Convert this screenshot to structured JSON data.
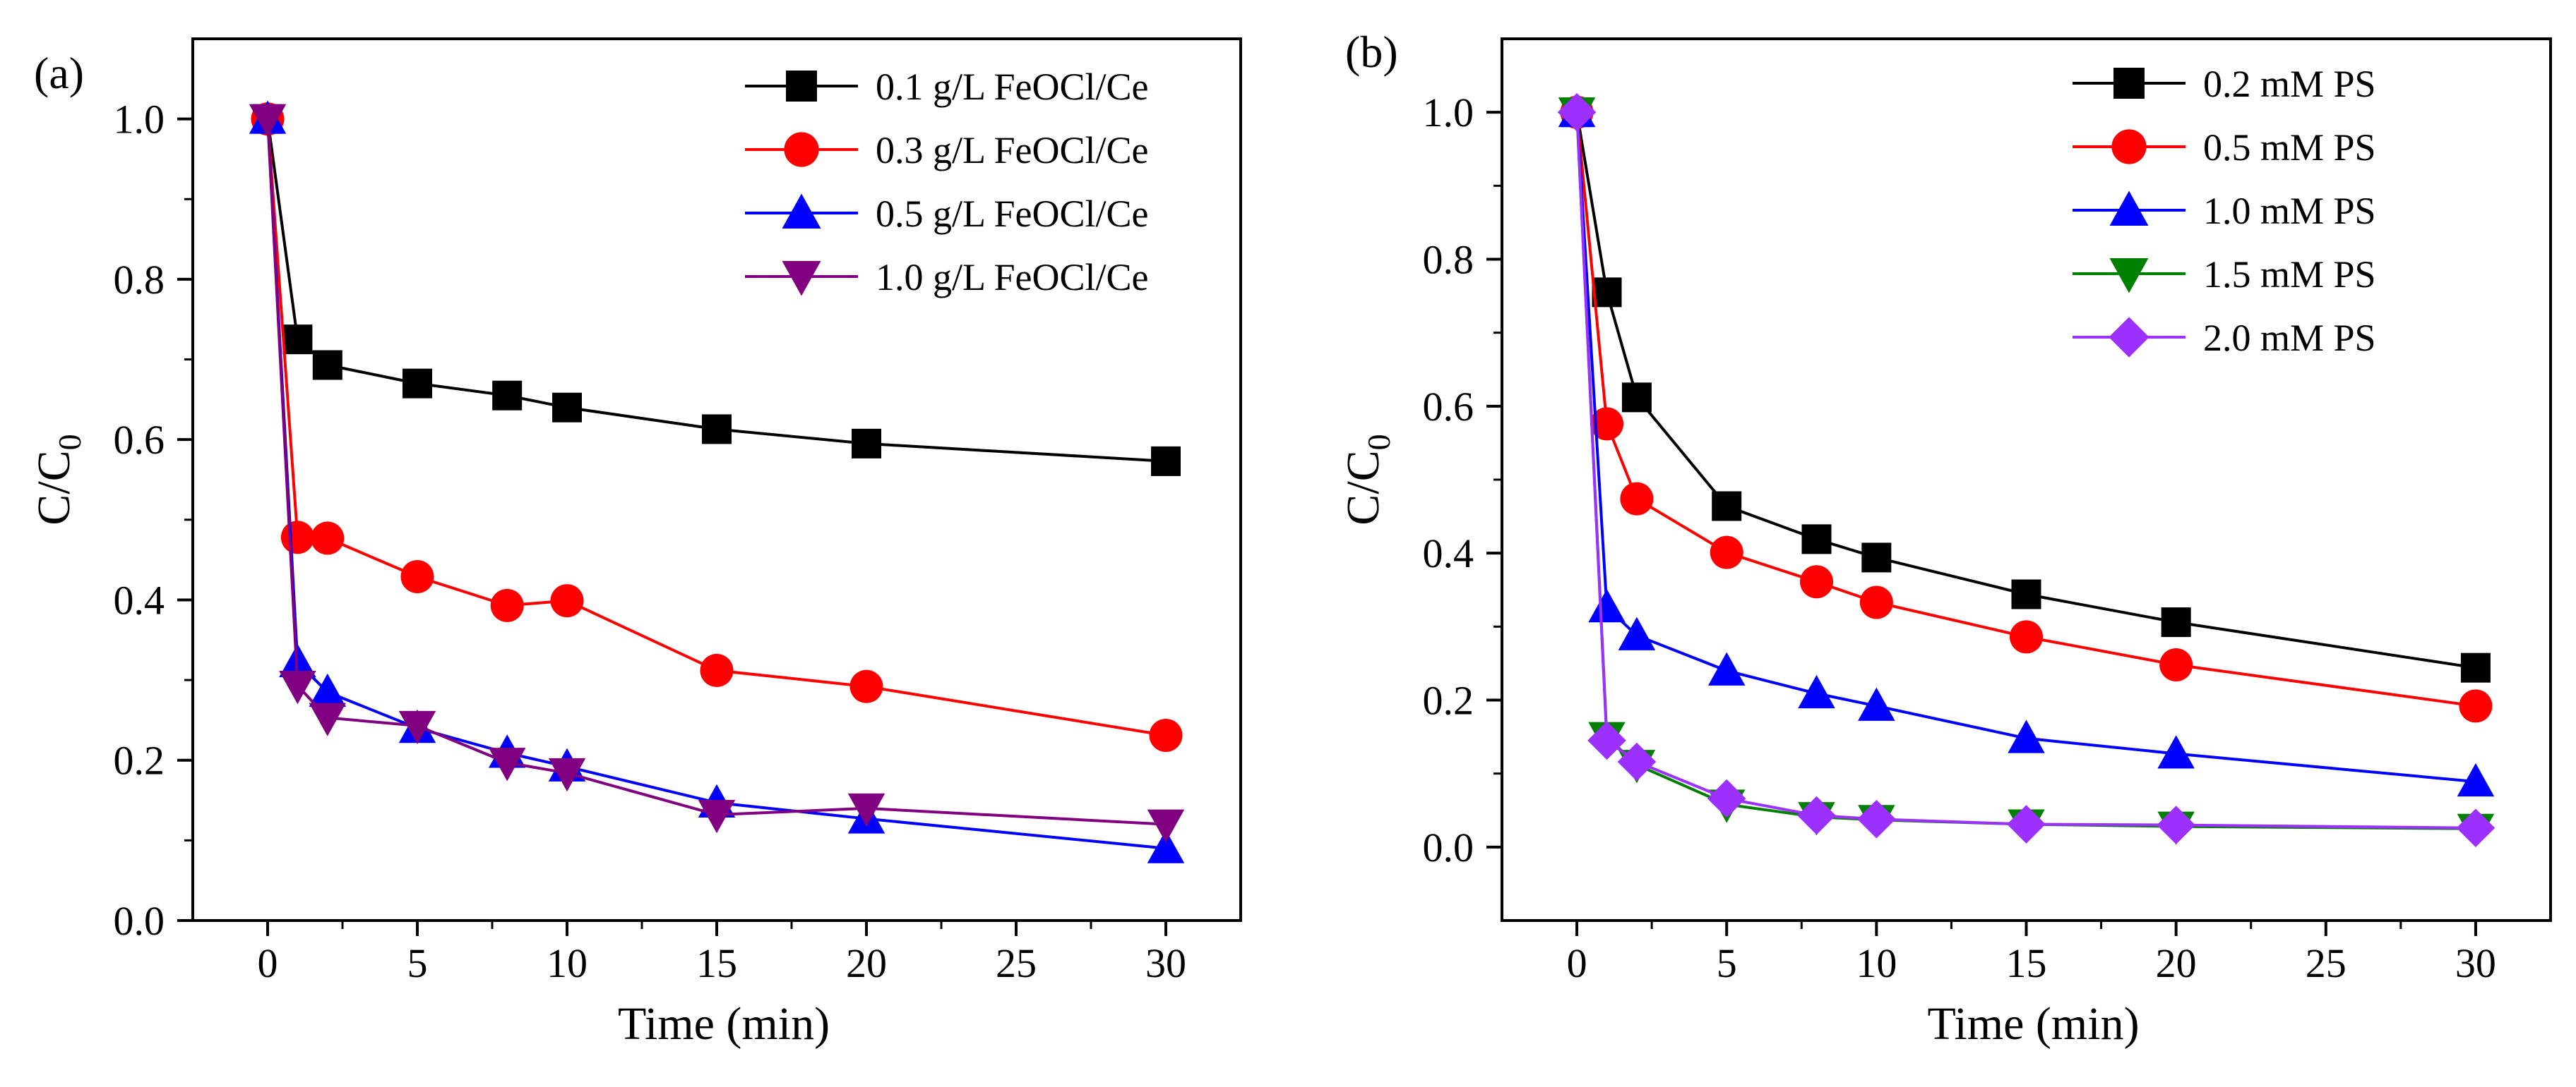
{
  "chart_data": [
    {
      "type": "line",
      "panel_label": "(a)",
      "xlabel": "Time (min)",
      "ylabel": "C/C0",
      "ylabel_main": "C/C",
      "ylabel_sub": "0",
      "xlim": [
        -2.5,
        32.5
      ],
      "ylim": [
        0.0,
        1.1
      ],
      "xticks": [
        0,
        5,
        10,
        15,
        20,
        25,
        30
      ],
      "yticks": [
        0.0,
        0.2,
        0.4,
        0.6,
        0.8,
        1.0
      ],
      "ytick_labels": [
        "0.0",
        "0.2",
        "0.4",
        "0.6",
        "0.8",
        "1.0"
      ],
      "legend_position": "top-right",
      "x": [
        0,
        1,
        2,
        5,
        8,
        10,
        15,
        20,
        30
      ],
      "series": [
        {
          "name": "0.1 g/L FeOCl/Ce",
          "color": "#000000",
          "marker": "square",
          "values": [
            1.0,
            0.725,
            0.693,
            0.67,
            0.655,
            0.64,
            0.613,
            0.595,
            0.573
          ]
        },
        {
          "name": "0.3 g/L FeOCl/Ce",
          "color": "#ff0000",
          "marker": "circle",
          "values": [
            1.0,
            0.478,
            0.477,
            0.429,
            0.393,
            0.399,
            0.312,
            0.292,
            0.231
          ]
        },
        {
          "name": "0.5 g/L FeOCl/Ce",
          "color": "#0000ff",
          "marker": "triangle-up",
          "values": [
            1.0,
            0.322,
            0.285,
            0.24,
            0.209,
            0.192,
            0.147,
            0.127,
            0.09
          ]
        },
        {
          "name": "1.0 g/L FeOCl/Ce",
          "color": "#800080",
          "marker": "triangle-down",
          "values": [
            1.0,
            0.293,
            0.253,
            0.243,
            0.197,
            0.184,
            0.132,
            0.14,
            0.12
          ]
        }
      ]
    },
    {
      "type": "line",
      "panel_label": "(b)",
      "xlabel": "Time (min)",
      "ylabel": "C/C0",
      "ylabel_main": "C/C",
      "ylabel_sub": "0",
      "xlim": [
        -2.5,
        32.5
      ],
      "ylim": [
        -0.1,
        1.1
      ],
      "xticks": [
        0,
        5,
        10,
        15,
        20,
        25,
        30
      ],
      "yticks": [
        0.0,
        0.2,
        0.4,
        0.6,
        0.8,
        1.0
      ],
      "ytick_labels": [
        "0.0",
        "0.2",
        "0.4",
        "0.6",
        "0.8",
        "1.0"
      ],
      "legend_position": "top-right",
      "x": [
        0,
        1,
        2,
        5,
        8,
        10,
        15,
        20,
        30
      ],
      "series": [
        {
          "name": "0.2 mM PS",
          "color": "#000000",
          "marker": "square",
          "values": [
            1.0,
            0.755,
            0.612,
            0.464,
            0.419,
            0.394,
            0.344,
            0.306,
            0.244
          ]
        },
        {
          "name": "0.5 mM PS",
          "color": "#ff0000",
          "marker": "circle",
          "values": [
            1.0,
            0.576,
            0.474,
            0.401,
            0.361,
            0.333,
            0.286,
            0.248,
            0.192
          ]
        },
        {
          "name": "1.0 mM PS",
          "color": "#0000ff",
          "marker": "triangle-up",
          "values": [
            1.0,
            0.326,
            0.288,
            0.24,
            0.209,
            0.192,
            0.148,
            0.127,
            0.089
          ]
        },
        {
          "name": "1.5 mM PS",
          "color": "#008000",
          "marker": "triangle-down",
          "values": [
            1.0,
            0.15,
            0.112,
            0.058,
            0.041,
            0.037,
            0.031,
            0.028,
            0.025
          ]
        },
        {
          "name": "2.0 mM PS",
          "color": "#9b30ff",
          "marker": "diamond",
          "values": [
            1.0,
            0.145,
            0.116,
            0.066,
            0.043,
            0.038,
            0.031,
            0.03,
            0.026
          ]
        }
      ]
    }
  ]
}
